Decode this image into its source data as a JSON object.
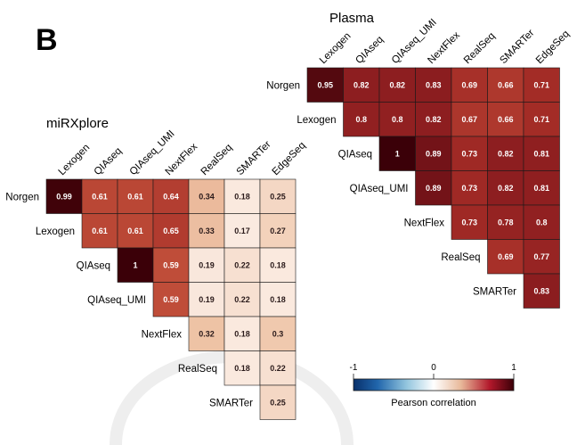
{
  "panel_label": "B",
  "colors": {
    "neg": "#08306b",
    "mid": "#ffffff",
    "pos": "#3b0008",
    "grid": "#1a1a1a"
  },
  "chart_data": [
    {
      "type": "heatmap",
      "title": "miRXplore",
      "columns": [
        "Lexogen",
        "QIAseq",
        "QIAseq_UMI",
        "NextFlex",
        "RealSeq",
        "SMARTer",
        "EdgeSeq"
      ],
      "rows": [
        "Norgen",
        "Lexogen",
        "QIAseq",
        "QIAseq_UMI",
        "NextFlex",
        "RealSeq",
        "SMARTer"
      ],
      "values": [
        [
          0.99,
          0.61,
          0.61,
          0.64,
          0.34,
          0.18,
          0.25
        ],
        [
          null,
          0.61,
          0.61,
          0.65,
          0.33,
          0.17,
          0.27
        ],
        [
          null,
          null,
          1,
          0.59,
          0.19,
          0.22,
          0.18
        ],
        [
          null,
          null,
          null,
          0.59,
          0.19,
          0.22,
          0.18
        ],
        [
          null,
          null,
          null,
          null,
          0.32,
          0.18,
          0.3
        ],
        [
          null,
          null,
          null,
          null,
          null,
          0.18,
          0.22
        ],
        [
          null,
          null,
          null,
          null,
          null,
          null,
          0.25
        ]
      ]
    },
    {
      "type": "heatmap",
      "title": "Plasma",
      "columns": [
        "Lexogen",
        "QIAseq",
        "QIAseq_UMI",
        "NextFlex",
        "RealSeq",
        "SMARTer",
        "EdgeSeq"
      ],
      "rows": [
        "Norgen",
        "Lexogen",
        "QIAseq",
        "QIAseq_UMI",
        "NextFlex",
        "RealSeq",
        "SMARTer"
      ],
      "values": [
        [
          0.95,
          0.82,
          0.82,
          0.83,
          0.69,
          0.66,
          0.71
        ],
        [
          null,
          0.8,
          0.8,
          0.82,
          0.67,
          0.66,
          0.71
        ],
        [
          null,
          null,
          1,
          0.89,
          0.73,
          0.82,
          0.81
        ],
        [
          null,
          null,
          null,
          0.89,
          0.73,
          0.82,
          0.81
        ],
        [
          null,
          null,
          null,
          null,
          0.73,
          0.78,
          0.8
        ],
        [
          null,
          null,
          null,
          null,
          null,
          0.69,
          0.77
        ],
        [
          null,
          null,
          null,
          null,
          null,
          null,
          0.83
        ]
      ]
    }
  ],
  "legend": {
    "title": "Pearson correlation",
    "range": [
      -1,
      1
    ],
    "ticks": [
      "-1",
      "0",
      "1"
    ]
  }
}
